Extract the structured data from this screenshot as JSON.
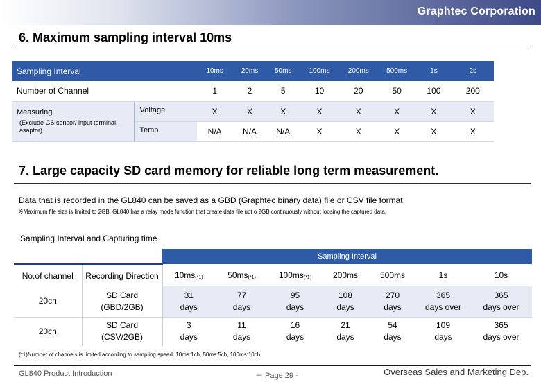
{
  "brand": "Graphtec Corporation",
  "section1": {
    "title": "6. Maximum sampling interval 10ms",
    "header_label": "Sampling Interval",
    "intervals": [
      "10ms",
      "20ms",
      "50ms",
      "100ms",
      "200ms",
      "500ms",
      "1s",
      "2s"
    ],
    "channels_label": "Number of Channel",
    "channels": [
      "1",
      "2",
      "5",
      "10",
      "20",
      "50",
      "100",
      "200"
    ],
    "measuring_label": "Measuring",
    "measuring_note": "(Exclude GS sensor/ input terminal, asaptor)",
    "voltage_label": "Voltage",
    "voltage": [
      "X",
      "X",
      "X",
      "X",
      "X",
      "X",
      "X",
      "X"
    ],
    "temp_label": "Temp.",
    "temp": [
      "N/A",
      "N/A",
      "N/A",
      "X",
      "X",
      "X",
      "X",
      "X"
    ]
  },
  "section2": {
    "title": "7. Large capacity SD card memory for reliable long term measurement.",
    "paragraph": "Data that is recorded in the GL840 can be saved as a GBD (Graphtec binary data) file or CSV file format.",
    "note": "※Maximum file size is limited to 2GB. GL840 has a relay mode function that create data file upt o 2GB continuously without loosing the captured data.",
    "subtitle": "Sampling Interval and Capturing time",
    "band_label": "Sampling Interval",
    "col_channel": "No.of channel",
    "col_direction": "Recording Direction",
    "intervals": [
      {
        "label": "10ms",
        "mark": "(*1)"
      },
      {
        "label": "50ms",
        "mark": "(*1)"
      },
      {
        "label": "100ms",
        "mark": "(*1)"
      },
      {
        "label": "200ms",
        "mark": ""
      },
      {
        "label": "500ms",
        "mark": ""
      },
      {
        "label": "1s",
        "mark": ""
      },
      {
        "label": "10s",
        "mark": ""
      }
    ],
    "rows": [
      {
        "channel": "20ch",
        "dir1": "SD Card",
        "dir2": "(GBD/2GB)",
        "cells": [
          [
            "31",
            "days"
          ],
          [
            "77",
            "days"
          ],
          [
            "95",
            "days"
          ],
          [
            "108",
            "days"
          ],
          [
            "270",
            "days"
          ],
          [
            "365",
            "days over"
          ],
          [
            "365",
            "days over"
          ]
        ]
      },
      {
        "channel": "20ch",
        "dir1": "SD Card",
        "dir2": "(CSV/2GB)",
        "cells": [
          [
            "3",
            "days"
          ],
          [
            "11",
            "days"
          ],
          [
            "16",
            "days"
          ],
          [
            "21",
            "days"
          ],
          [
            "54",
            "days"
          ],
          [
            "109",
            "days"
          ],
          [
            "365",
            "days over"
          ]
        ]
      }
    ],
    "footnote": "(*1)Number of channels is limited according to sampling speed. 10ms:1ch, 50ms:5ch, 100ms:10ch"
  },
  "footer": {
    "left": "GL840 Product Introduction",
    "center": "－ Page 29 -",
    "right": "Overseas Sales and Marketing Dep."
  },
  "colors": {
    "header_blue": "#2f5aa6",
    "light_row": "#e6ebf5"
  }
}
